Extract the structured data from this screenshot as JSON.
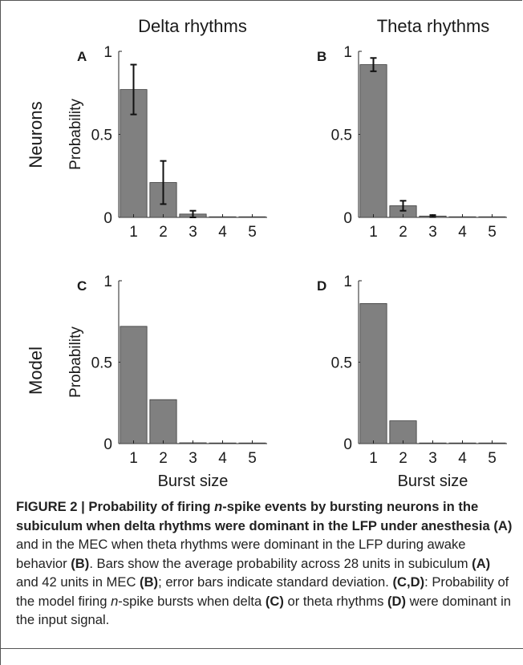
{
  "colors": {
    "bar": "#808080",
    "bar_edge": "#3a3a3a",
    "axis": "#222222",
    "text": "#1a1a1a"
  },
  "figure": {
    "col_titles": [
      "Delta rhythms",
      "Theta rhythms"
    ],
    "row_labels": [
      "Neurons",
      "Model"
    ]
  },
  "chart_data": [
    {
      "panel": "A",
      "type": "bar",
      "ylabel": "Probability",
      "xlabel": "",
      "categories": [
        "1",
        "2",
        "3",
        "4",
        "5"
      ],
      "values": [
        0.77,
        0.21,
        0.02,
        0.003,
        0.002
      ],
      "error": [
        0.15,
        0.13,
        0.02,
        0,
        0
      ],
      "ylim": [
        0,
        1
      ],
      "yticks": [
        0,
        0.5,
        1
      ],
      "ytick_labels": [
        "0",
        "0.5",
        "1"
      ]
    },
    {
      "panel": "B",
      "type": "bar",
      "ylabel": "",
      "xlabel": "",
      "categories": [
        "1",
        "2",
        "3",
        "4",
        "5"
      ],
      "values": [
        0.92,
        0.07,
        0.008,
        0.002,
        0.002
      ],
      "error": [
        0.04,
        0.03,
        0.006,
        0,
        0
      ],
      "ylim": [
        0,
        1
      ],
      "yticks": [
        0,
        0.5,
        1
      ],
      "ytick_labels": [
        "0",
        "0.5",
        "1"
      ]
    },
    {
      "panel": "C",
      "type": "bar",
      "ylabel": "Probability",
      "xlabel": "Burst size",
      "categories": [
        "1",
        "2",
        "3",
        "4",
        "5"
      ],
      "values": [
        0.72,
        0.27,
        0.005,
        0,
        0
      ],
      "error": [],
      "ylim": [
        0,
        1
      ],
      "yticks": [
        0,
        0.5,
        1
      ],
      "ytick_labels": [
        "0",
        "0.5",
        "1"
      ]
    },
    {
      "panel": "D",
      "type": "bar",
      "ylabel": "",
      "xlabel": "Burst size",
      "categories": [
        "1",
        "2",
        "3",
        "4",
        "5"
      ],
      "values": [
        0.86,
        0.14,
        0,
        0,
        0
      ],
      "error": [],
      "ylim": [
        0,
        1
      ],
      "yticks": [
        0,
        0.5,
        1
      ],
      "ytick_labels": [
        "0",
        "0.5",
        "1"
      ]
    }
  ],
  "caption": {
    "lead": "FIGURE 2 | Probability of firing ",
    "lead_n": "n",
    "lead_rest": "-spike events by bursting neurons in the subiculum when delta rhythms were dominant in the LFP under anesthesia ",
    "lead_A": "(A)",
    "mid1": " and in the MEC when theta rhythms were dominant in the LFP during awake behavior ",
    "ref_B": "(B)",
    "mid2": ". Bars show the average probability across 28 units in subiculum ",
    "ref_A2": "(A)",
    "mid3": " and 42 units in MEC ",
    "ref_B2": "(B)",
    "mid4": "; error bars indicate standard deviation. ",
    "ref_CD": "(C,D)",
    "mid5": ": Probability of the model firing ",
    "n2": "n",
    "mid6": "-spike bursts when delta ",
    "ref_C": "(C)",
    "mid7": " or theta rhythms ",
    "ref_D": "(D)",
    "mid8": " were dominant in the input signal."
  }
}
